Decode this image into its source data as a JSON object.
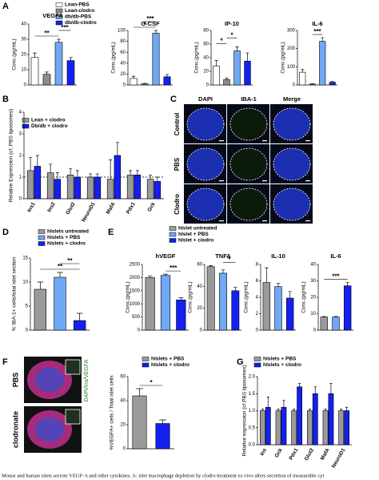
{
  "chart_data": [
    {
      "panel": "A",
      "type": "bar_multi",
      "ylabel": "Conc.(pg/mL)",
      "categories": [
        "Lean-PBS",
        "Lean-clodro",
        "db/db-PBS",
        "db/db-clodro"
      ],
      "colors": [
        "#ffffff",
        "#8c8c8c",
        "#6fa8f5",
        "#1420f0"
      ],
      "subplots": [
        {
          "title": "VEGFA",
          "ylim": [
            0,
            40
          ],
          "yticks": [
            0,
            10,
            20,
            30,
            40
          ],
          "values": [
            18,
            7,
            28,
            16
          ],
          "errors": [
            3,
            1.5,
            2,
            2
          ],
          "annotations": [
            "**",
            "***"
          ]
        },
        {
          "title": "G-CSF",
          "ylim": [
            0,
            100
          ],
          "yticks": [
            0,
            20,
            40,
            60,
            80,
            100
          ],
          "values": [
            12,
            2,
            95,
            15
          ],
          "errors": [
            4,
            1,
            5,
            4
          ],
          "annotations": [
            "*",
            "***"
          ]
        },
        {
          "title": "IP-10",
          "ylim": [
            0,
            80
          ],
          "yticks": [
            0,
            20,
            40,
            60,
            80
          ],
          "values": [
            28,
            8,
            50,
            35
          ],
          "errors": [
            8,
            2,
            6,
            12
          ],
          "annotations": [
            "*",
            "*"
          ]
        },
        {
          "title": "IL-6",
          "ylim": [
            0,
            300
          ],
          "yticks": [
            0,
            100,
            200,
            300
          ],
          "values": [
            70,
            5,
            240,
            15
          ],
          "errors": [
            15,
            2,
            20,
            4
          ],
          "annotations": [
            "***"
          ]
        }
      ]
    },
    {
      "panel": "B",
      "type": "grouped_bar",
      "ylabel": "Relative Expression (cf. PBS liposomes)",
      "categories": [
        "Ins1",
        "Ins2",
        "Glut2",
        "NeuroD1",
        "MafA",
        "Pdx1",
        "Gck"
      ],
      "series": [
        {
          "name": "Lean + clodro",
          "color": "#9a9a9a",
          "values": [
            1.3,
            1.2,
            1.1,
            1.0,
            0.9,
            1.1,
            0.9
          ],
          "errors": [
            0.6,
            0.4,
            0.3,
            0.15,
            0.9,
            0.2,
            0.2
          ]
        },
        {
          "name": "Db/db + clodro",
          "color": "#1420f0",
          "values": [
            1.5,
            0.9,
            1.0,
            1.0,
            2.0,
            1.1,
            0.8
          ],
          "errors": [
            0.5,
            0.3,
            0.3,
            0.15,
            0.6,
            0.2,
            0.2
          ]
        }
      ],
      "ylim": [
        0,
        4
      ],
      "yticks": [
        0,
        1,
        2,
        3,
        4
      ],
      "reference_line": 1
    },
    {
      "panel": "C",
      "type": "image_grid",
      "columns": [
        "DAPI",
        "IBA-1",
        "Merge"
      ],
      "rows": [
        "Control",
        "PBS",
        "Clodro"
      ]
    },
    {
      "panel": "D",
      "type": "bar",
      "ylabel": "% IBA-1+ cells/total islet section",
      "categories": [
        "hIslets untreated",
        "hIslets + PBS",
        "hIslets + clodro"
      ],
      "colors": [
        "#9a9a9a",
        "#6fa8f5",
        "#1420f0"
      ],
      "values": [
        8.5,
        11,
        2
      ],
      "errors": [
        1.5,
        1,
        1.5
      ],
      "ylim": [
        0,
        15
      ],
      "yticks": [
        0,
        5,
        10,
        15
      ],
      "annotations": [
        "**",
        "**"
      ]
    },
    {
      "panel": "E",
      "type": "bar_multi",
      "ylabel": "Conc.(pg/mL)",
      "categories": [
        "hIslet untreated",
        "hIslet + PBS",
        "hIslet + clodro"
      ],
      "colors": [
        "#9a9a9a",
        "#6fa8f5",
        "#1420f0"
      ],
      "subplots": [
        {
          "title": "hVEGF",
          "ylim": [
            0,
            2500
          ],
          "yticks": [
            0,
            500,
            1000,
            1500,
            2000,
            2500
          ],
          "values": [
            2000,
            2080,
            1150
          ],
          "errors": [
            60,
            50,
            80
          ],
          "annotations": [
            "***"
          ]
        },
        {
          "title": "TNFA",
          "ylim": [
            0,
            60
          ],
          "yticks": [
            0,
            20,
            40,
            60
          ],
          "values": [
            58,
            52,
            36
          ],
          "errors": [
            1,
            3,
            3
          ],
          "annotations": [
            "*"
          ]
        },
        {
          "title": "IL-10",
          "ylim": [
            0,
            8
          ],
          "yticks": [
            0,
            2,
            4,
            6,
            8
          ],
          "values": [
            5.8,
            5.3,
            3.9
          ],
          "errors": [
            1.8,
            0.4,
            0.8
          ],
          "annotations": []
        },
        {
          "title": "IL-6",
          "ylim": [
            0,
            40
          ],
          "yticks": [
            0,
            10,
            20,
            30,
            40
          ],
          "values": [
            8,
            8,
            27
          ],
          "errors": [
            0.3,
            0.3,
            2
          ],
          "annotations": [
            "***"
          ]
        }
      ]
    },
    {
      "panel": "F",
      "type": "bar",
      "image_rows": [
        "PBS",
        "clodronate"
      ],
      "stain": "DAPI/Ins/VEGFA",
      "ylabel": "%VEGFA+ cells / Total islet cells",
      "categories": [
        "hIslets + PBS",
        "hIslets + clodro"
      ],
      "colors": [
        "#9a9a9a",
        "#1420f0"
      ],
      "values": [
        44,
        21
      ],
      "errors": [
        6,
        3
      ],
      "ylim": [
        0,
        60
      ],
      "yticks": [
        0,
        20,
        40,
        60
      ],
      "annotations": [
        "*"
      ]
    },
    {
      "panel": "G",
      "type": "grouped_bar",
      "ylabel": "Relative expression (cf.PBS liposomes)",
      "categories": [
        "Ins",
        "Gck",
        "Pdx1",
        "Glut2",
        "MafA",
        "NeuroD1"
      ],
      "series": [
        {
          "name": "hIslets + PBS",
          "color": "#9a9a9a",
          "values": [
            1,
            1,
            1,
            1,
            1,
            1
          ],
          "errors": [
            0.05,
            0.05,
            0.05,
            0.05,
            0.05,
            0.05
          ]
        },
        {
          "name": "hIslets + clodro",
          "color": "#1420f0",
          "values": [
            1.1,
            1.1,
            1.7,
            1.5,
            1.5,
            1.0
          ],
          "errors": [
            0.3,
            0.2,
            0.1,
            0.2,
            0.3,
            0.1
          ]
        }
      ],
      "ylim": [
        0,
        2
      ],
      "yticks": [
        {
          "value": 0,
          "label": "0.0"
        },
        {
          "value": 0.5,
          "label": "0.5"
        },
        {
          "value": 1,
          "label": "1.0"
        },
        {
          "value": 1.5,
          "label": "1.5"
        },
        {
          "value": 2,
          "label": "2.0"
        }
      ]
    }
  ],
  "caption": "Mouse and human islets secrete VEGF-A and other cytokines. A: islet macrophage depletion by clodro treatment ex vivo alters secretion of measurable cyt"
}
